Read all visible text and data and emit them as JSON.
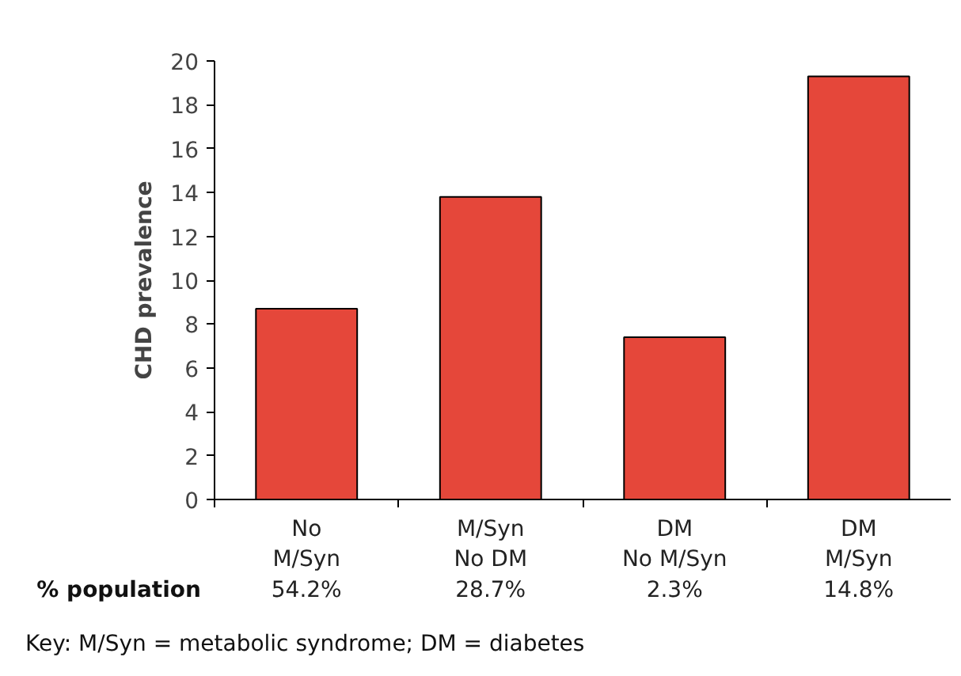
{
  "chart_data": {
    "type": "bar",
    "ylabel": "CHD prevalence",
    "categories": [
      "No\nM/Syn\n54.2%",
      "M/Syn\nNo DM\n28.7%",
      "DM\nNo M/Syn\n2.3%",
      "DM\nM/Syn\n14.8%"
    ],
    "values": [
      8.7,
      13.8,
      7.4,
      19.3
    ],
    "color": "#e5473a",
    "ylim": [
      0,
      20
    ],
    "yticks": [
      0,
      2,
      4,
      6,
      8,
      10,
      12,
      14,
      16,
      18,
      20
    ],
    "grid": false,
    "annotations": [
      "% population",
      "Key: M/Syn = metabolic syndrome; DM = diabetes"
    ]
  }
}
